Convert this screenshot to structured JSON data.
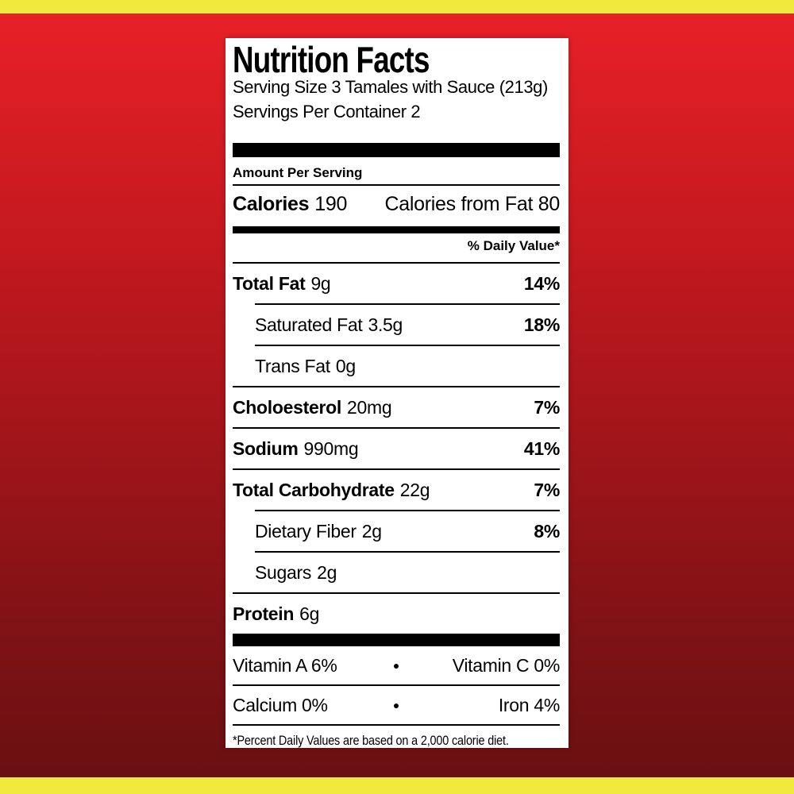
{
  "background": {
    "stripe_color": "#F2E93E",
    "red_top": "#E62027",
    "red_bottom": "#6B1012"
  },
  "label": {
    "title": "Nutrition Facts",
    "serving_size": "Serving Size 3 Tamales with Sauce (213g)",
    "servings_per_container": "Servings Per Container 2",
    "amount_per_serving": "Amount Per Serving",
    "calories": {
      "label": "Calories",
      "value": "190",
      "from_fat": "Calories from Fat 80"
    },
    "daily_value_header": "% Daily Value*",
    "rows": [
      {
        "name": "Total Fat",
        "amount": "9g",
        "dv": "14%"
      },
      {
        "name": "Saturated Fat",
        "amount": "3.5g",
        "dv": "18%"
      },
      {
        "name": "Trans Fat",
        "amount": "0g",
        "dv": ""
      },
      {
        "name": "Choloesterol",
        "amount": "20mg",
        "dv": "7%"
      },
      {
        "name": "Sodium",
        "amount": "990mg",
        "dv": "41%"
      },
      {
        "name": "Total Carbohydrate",
        "amount": "22g",
        "dv": "7%"
      },
      {
        "name": "Dietary Fiber",
        "amount": "2g",
        "dv": "8%"
      },
      {
        "name": "Sugars",
        "amount": "2g",
        "dv": ""
      },
      {
        "name": "Protein",
        "amount": "6g",
        "dv": ""
      }
    ],
    "micronutrients": [
      {
        "left": "Vitamin A 6%",
        "bullet": "●",
        "right": "Vitamin C 0%"
      },
      {
        "left": "Calcium 0%",
        "bullet": "●",
        "right": "Iron 4%"
      }
    ],
    "footnote": "*Percent Daily Values are based on a 2,000 calorie diet."
  }
}
